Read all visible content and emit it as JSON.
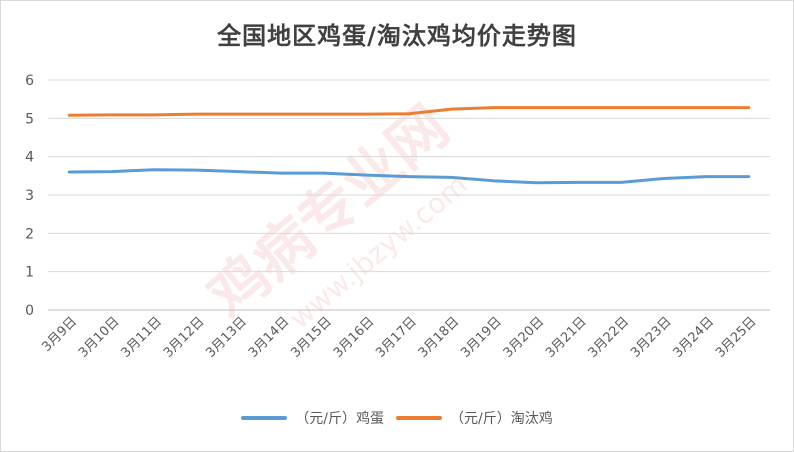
{
  "chart_data": {
    "type": "line",
    "title": "全国地区鸡蛋/淘汰鸡均价走势图",
    "categories": [
      "3月9日",
      "3月10日",
      "3月11日",
      "3月12日",
      "3月13日",
      "3月14日",
      "3月15日",
      "3月16日",
      "3月17日",
      "3月18日",
      "3月19日",
      "3月20日",
      "3月21日",
      "3月22日",
      "3月23日",
      "3月24日",
      "3月25日"
    ],
    "series": [
      {
        "name": "（元/斤）鸡蛋",
        "color": "#5b9bd5",
        "values": [
          3.6,
          3.61,
          3.66,
          3.65,
          3.61,
          3.57,
          3.57,
          3.52,
          3.48,
          3.46,
          3.37,
          3.32,
          3.33,
          3.33,
          3.43,
          3.48,
          3.48
        ]
      },
      {
        "name": "（元/斤）淘汰鸡",
        "color": "#ed7d31",
        "values": [
          5.08,
          5.09,
          5.09,
          5.11,
          5.11,
          5.11,
          5.11,
          5.11,
          5.12,
          5.24,
          5.28,
          5.28,
          5.28,
          5.28,
          5.28,
          5.28,
          5.28
        ]
      }
    ],
    "ylim": [
      0,
      6
    ],
    "yticks": [
      0,
      1,
      2,
      3,
      4,
      5,
      6
    ],
    "grid": true,
    "legend": "bottom"
  }
}
